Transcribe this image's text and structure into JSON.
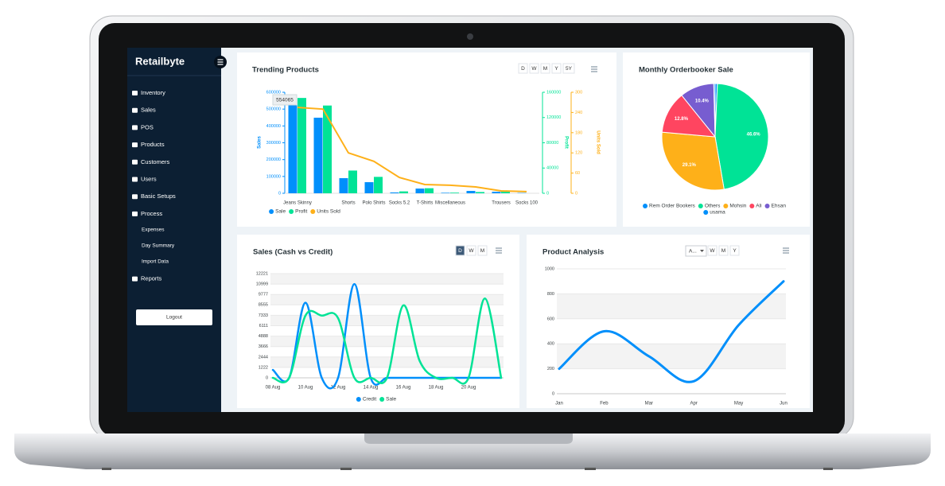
{
  "sidebar": {
    "brand": "Retailbyte",
    "menu": [
      {
        "label": "Inventory"
      },
      {
        "label": "Sales"
      },
      {
        "label": "POS"
      },
      {
        "label": "Products"
      },
      {
        "label": "Customers"
      },
      {
        "label": "Users"
      },
      {
        "label": "Basic Setups"
      },
      {
        "label": "Process",
        "items": [
          "Expenses",
          "Day Summary",
          "Import Data"
        ]
      },
      {
        "label": "Reports"
      }
    ],
    "logout": "Logout"
  },
  "chart_data": [
    {
      "type": "bar",
      "title": "Trending Products",
      "range_buttons": [
        "D",
        "W",
        "M",
        "Y",
        "5Y"
      ],
      "categories": [
        "Jeans Skinny",
        null,
        "Shorts",
        "Polo Shirts",
        "Socks 5.2",
        "T-Shirts",
        "Miscellaneous",
        null,
        "Trousers",
        "Socks 100"
      ],
      "series": [
        {
          "name": "Sale",
          "color": "#008ffb",
          "values": [
            554065,
            449000,
            90000,
            66000,
            5000,
            28000,
            3000,
            14000,
            9000,
            2000
          ]
        },
        {
          "name": "Profit",
          "color": "#00e396",
          "axis": "y2",
          "values": [
            151000,
            139000,
            36000,
            26000,
            3000,
            8000,
            1000,
            2000,
            2500,
            0
          ]
        },
        {
          "name": "Units Sold",
          "color": "#feb019",
          "axis": "y3",
          "type": "line",
          "values": [
            255,
            250,
            120,
            95,
            47,
            26,
            24,
            19,
            7,
            5
          ]
        }
      ],
      "y_label": "Sales",
      "y2_label": "Profit",
      "y3_label": "Units Sold",
      "ylim": [
        0,
        600000
      ],
      "yticks": [
        0,
        100000,
        200000,
        300000,
        400000,
        500000,
        600000
      ],
      "y2lim": [
        0,
        160000
      ],
      "y2ticks": [
        0,
        40000,
        80000,
        120000,
        160000
      ],
      "y3lim": [
        0,
        300
      ],
      "y3ticks": [
        0,
        60,
        120,
        180,
        240,
        300
      ]
    },
    {
      "type": "pie",
      "title": "Monthly Orderbooker Sale",
      "labels": [
        "Rem Order Bookers",
        "Others",
        "Mohsin",
        "Ali",
        "Ehsan",
        "usama"
      ],
      "values": [
        0.7,
        46.6,
        29.1,
        12.8,
        10.4,
        0.4
      ],
      "value_labels": [
        null,
        "46.6%",
        "29.1%",
        "12.8%",
        "10.4%",
        null
      ],
      "colors": [
        "#008ffb",
        "#00e396",
        "#feb019",
        "#ff4560",
        "#775dd0",
        "#008ffb"
      ]
    },
    {
      "type": "line",
      "title": "Sales (Cash vs Credit)",
      "range_buttons": [
        "D",
        "W",
        "M"
      ],
      "categories": [
        "08 Aug",
        null,
        "10 Aug",
        null,
        "12 Aug",
        null,
        "14 Aug",
        null,
        "16 Aug",
        null,
        "18 Aug",
        null,
        "20 Aug",
        null,
        null
      ],
      "series": [
        {
          "name": "Credit",
          "color": "#008ffb",
          "values": [
            930,
            0,
            8800,
            0,
            0,
            11000,
            0,
            0,
            0,
            0,
            0,
            0,
            0,
            0,
            0
          ]
        },
        {
          "name": "Sale",
          "color": "#00e396",
          "values": [
            0,
            0,
            7300,
            7300,
            7000,
            0,
            0,
            0,
            8500,
            2000,
            0,
            0,
            0,
            9300,
            0
          ]
        }
      ],
      "ylim": [
        0,
        12221
      ],
      "yticks": [
        0,
        1222,
        2444,
        3666,
        4888,
        6111,
        7333,
        8555,
        9777,
        10999,
        12221
      ],
      "grid": true
    },
    {
      "type": "line",
      "title": "Product Analysis",
      "range_select": "A...",
      "range_buttons": [
        "W",
        "M",
        "Y"
      ],
      "categories": [
        "Jan",
        "Feb",
        "Mar",
        "Apr",
        "May",
        "Jun"
      ],
      "color": "#008ffb",
      "values": [
        200,
        500,
        300,
        100,
        550,
        900
      ],
      "ylim": [
        0,
        1000
      ],
      "yticks": [
        0,
        200,
        400,
        600,
        800,
        1000
      ],
      "grid": true
    }
  ]
}
